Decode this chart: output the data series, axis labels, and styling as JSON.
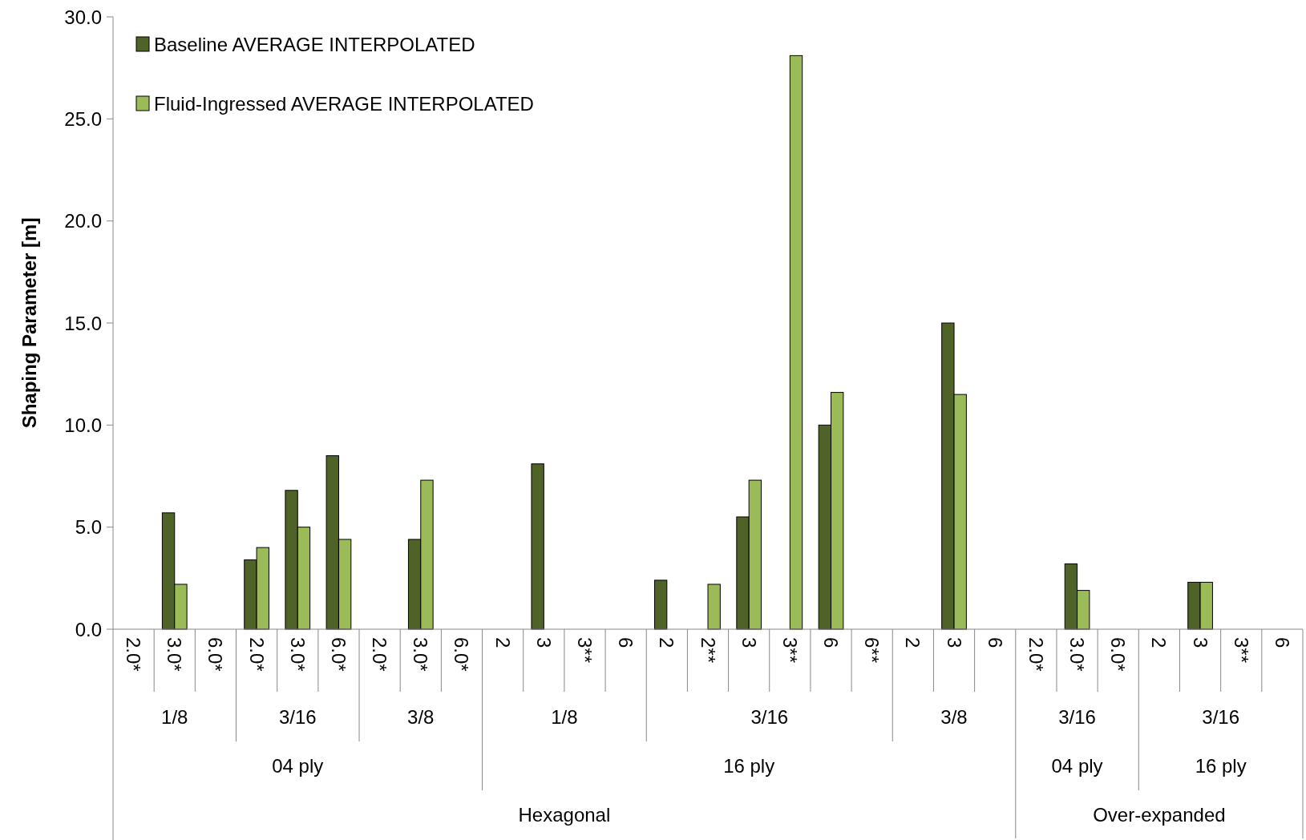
{
  "chart_data": {
    "type": "bar",
    "ylabel": "Shaping Parameter [m]",
    "categories": [
      "2.0*",
      "3.0*",
      "6.0*",
      "2.0*",
      "3.0*",
      "6.0*",
      "2.0*",
      "3.0*",
      "6.0*",
      "2",
      "3",
      "3**",
      "6",
      "2",
      "2**",
      "3",
      "3**",
      "6",
      "6**",
      "2",
      "3",
      "6",
      "2.0*",
      "3.0*",
      "6.0*",
      "2",
      "3",
      "3**",
      "6"
    ],
    "series": [
      {
        "name": "Baseline AVERAGE INTERPOLATED",
        "color": "#4f6228",
        "values": [
          null,
          5.7,
          null,
          3.4,
          6.8,
          8.5,
          null,
          4.4,
          null,
          null,
          8.1,
          null,
          null,
          2.4,
          null,
          5.5,
          null,
          10.0,
          null,
          null,
          15.0,
          null,
          null,
          3.2,
          null,
          null,
          2.3,
          null,
          null
        ]
      },
      {
        "name": "Fluid-Ingressed AVERAGE INTERPOLATED",
        "color": "#9bbb59",
        "values": [
          null,
          2.2,
          null,
          4.0,
          5.0,
          4.4,
          null,
          7.3,
          null,
          null,
          null,
          null,
          null,
          null,
          2.2,
          7.3,
          28.1,
          11.6,
          null,
          null,
          11.5,
          null,
          null,
          1.9,
          null,
          null,
          2.3,
          null,
          null
        ]
      }
    ],
    "ylim": [
      0,
      30
    ],
    "yticks": [
      {
        "value": 0,
        "label": "0.0"
      },
      {
        "value": 5,
        "label": "5.0"
      },
      {
        "value": 10,
        "label": "10.0"
      },
      {
        "value": 15,
        "label": "15.0"
      },
      {
        "value": 20,
        "label": "20.0"
      },
      {
        "value": 25,
        "label": "25.0"
      },
      {
        "value": 30,
        "label": "30.0"
      }
    ],
    "legend": "top left",
    "grid": false,
    "annotations": [
      "1/8",
      "3/16",
      "3/8",
      "1/8",
      "3/16",
      "3/8",
      "3/16",
      "3/16",
      "04 ply",
      "16 ply",
      "04 ply",
      "16 ply",
      "Hexagonal",
      "Over-expanded"
    ]
  }
}
